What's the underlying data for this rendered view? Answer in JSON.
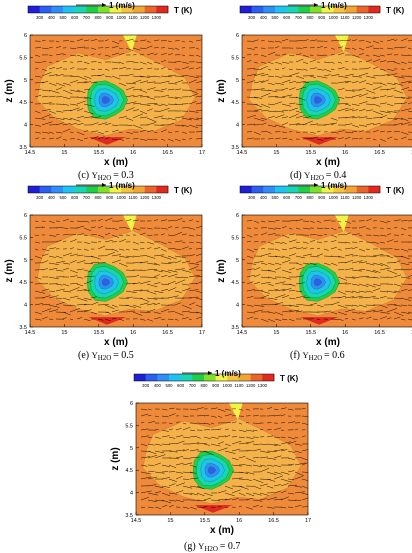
{
  "chart_data": [
    {
      "type": "heatmap",
      "caption": {
        "prefix": "(c)",
        "label": "Y",
        "subscript": "H2O",
        "value": "= 0.3"
      },
      "xlabel": "x (m)",
      "ylabel": "z (m)",
      "xlim": [
        14.5,
        17
      ],
      "ylim": [
        3.5,
        6
      ],
      "xticks": [
        "14.5",
        "15",
        "15.5",
        "16",
        "16.5",
        "17"
      ],
      "yticks": [
        "3.5",
        "4",
        "4.5",
        "5",
        "5.5",
        "6"
      ],
      "colorbar": {
        "title": "T (K)",
        "levels": [
          "300",
          "400",
          "500",
          "600",
          "700",
          "800",
          "900",
          "1000",
          "1100",
          "1200",
          "1300"
        ]
      },
      "vector_reference": "1 (m/s)",
      "cold_core_center": [
        15.6,
        4.55
      ],
      "max_temperature": 1300,
      "min_temperature": 300
    },
    {
      "type": "heatmap",
      "caption": {
        "prefix": "(d)",
        "label": "Y",
        "subscript": "H2O",
        "value": "= 0.4"
      },
      "xlabel": "x (m)",
      "ylabel": "z (m)",
      "xlim": [
        14.5,
        17
      ],
      "ylim": [
        3.5,
        6
      ],
      "xticks": [
        "14.5",
        "15",
        "15.5",
        "16",
        "16.5",
        "17"
      ],
      "yticks": [
        "3.5",
        "4",
        "4.5",
        "5",
        "5.5",
        "6"
      ],
      "colorbar": {
        "title": "T (K)",
        "levels": [
          "300",
          "400",
          "500",
          "600",
          "700",
          "800",
          "900",
          "1000",
          "1100",
          "1200",
          "1300"
        ]
      },
      "vector_reference": "1 (m/s)",
      "cold_core_center": [
        15.6,
        4.55
      ],
      "max_temperature": 1300,
      "min_temperature": 300
    },
    {
      "type": "heatmap",
      "caption": {
        "prefix": "(e)",
        "label": "Y",
        "subscript": "H2O",
        "value": "= 0.5"
      },
      "xlabel": "x (m)",
      "ylabel": "z (m)",
      "xlim": [
        14.5,
        17
      ],
      "ylim": [
        3.5,
        6
      ],
      "xticks": [
        "14.5",
        "15",
        "15.5",
        "16",
        "16.5",
        "17"
      ],
      "yticks": [
        "3.5",
        "4",
        "4.5",
        "5",
        "5.5",
        "6"
      ],
      "colorbar": {
        "title": "T (K)",
        "levels": [
          "300",
          "400",
          "500",
          "600",
          "700",
          "800",
          "900",
          "1000",
          "1100",
          "1200",
          "1300"
        ]
      },
      "vector_reference": "1 (m/s)",
      "cold_core_center": [
        15.6,
        4.5
      ],
      "max_temperature": 1300,
      "min_temperature": 300
    },
    {
      "type": "heatmap",
      "caption": {
        "prefix": "(f)",
        "label": "Y",
        "subscript": "H2O",
        "value": "= 0.6"
      },
      "xlabel": "x (m)",
      "ylabel": "z (m)",
      "xlim": [
        14.5,
        17
      ],
      "ylim": [
        3.5,
        6
      ],
      "xticks": [
        "14.5",
        "15",
        "15.5",
        "16",
        "16.5",
        "17"
      ],
      "yticks": [
        "3.5",
        "4",
        "4.5",
        "5",
        "5.5",
        "6"
      ],
      "colorbar": {
        "title": "T (K)",
        "levels": [
          "300",
          "400",
          "500",
          "600",
          "700",
          "800",
          "900",
          "1000",
          "1100",
          "1200",
          "1300"
        ]
      },
      "vector_reference": "1 (m/s)",
      "cold_core_center": [
        15.6,
        4.5
      ],
      "max_temperature": 1300,
      "min_temperature": 300
    },
    {
      "type": "heatmap",
      "caption": {
        "prefix": "(g)",
        "label": "Y",
        "subscript": "H2O",
        "value": "= 0.7"
      },
      "xlabel": "x (m)",
      "ylabel": "z (m)",
      "xlim": [
        14.5,
        17
      ],
      "ylim": [
        3.5,
        6
      ],
      "xticks": [
        "14.5",
        "15",
        "15.5",
        "16",
        "16.5",
        "17"
      ],
      "yticks": [
        "3.5",
        "4",
        "4.5",
        "5",
        "5.5",
        "6"
      ],
      "colorbar": {
        "title": "T (K)",
        "levels": [
          "300",
          "400",
          "500",
          "600",
          "700",
          "800",
          "900",
          "1000",
          "1100",
          "1200",
          "1300"
        ]
      },
      "vector_reference": "1 (m/s)",
      "cold_core_center": [
        15.6,
        4.5
      ],
      "max_temperature": 1300,
      "min_temperature": 300
    }
  ],
  "colors": {
    "scale": [
      "#1f1fd6",
      "#2a5ff0",
      "#2f8ff7",
      "#1fc3f2",
      "#17d6b4",
      "#1fcf46",
      "#7fe02a",
      "#f3f346",
      "#f6c43c",
      "#f3a534",
      "#e8662b",
      "#e02a1f"
    ],
    "background_field": "#ef8a3a",
    "warm_field": "#f5b24a",
    "vector": "#000000"
  }
}
